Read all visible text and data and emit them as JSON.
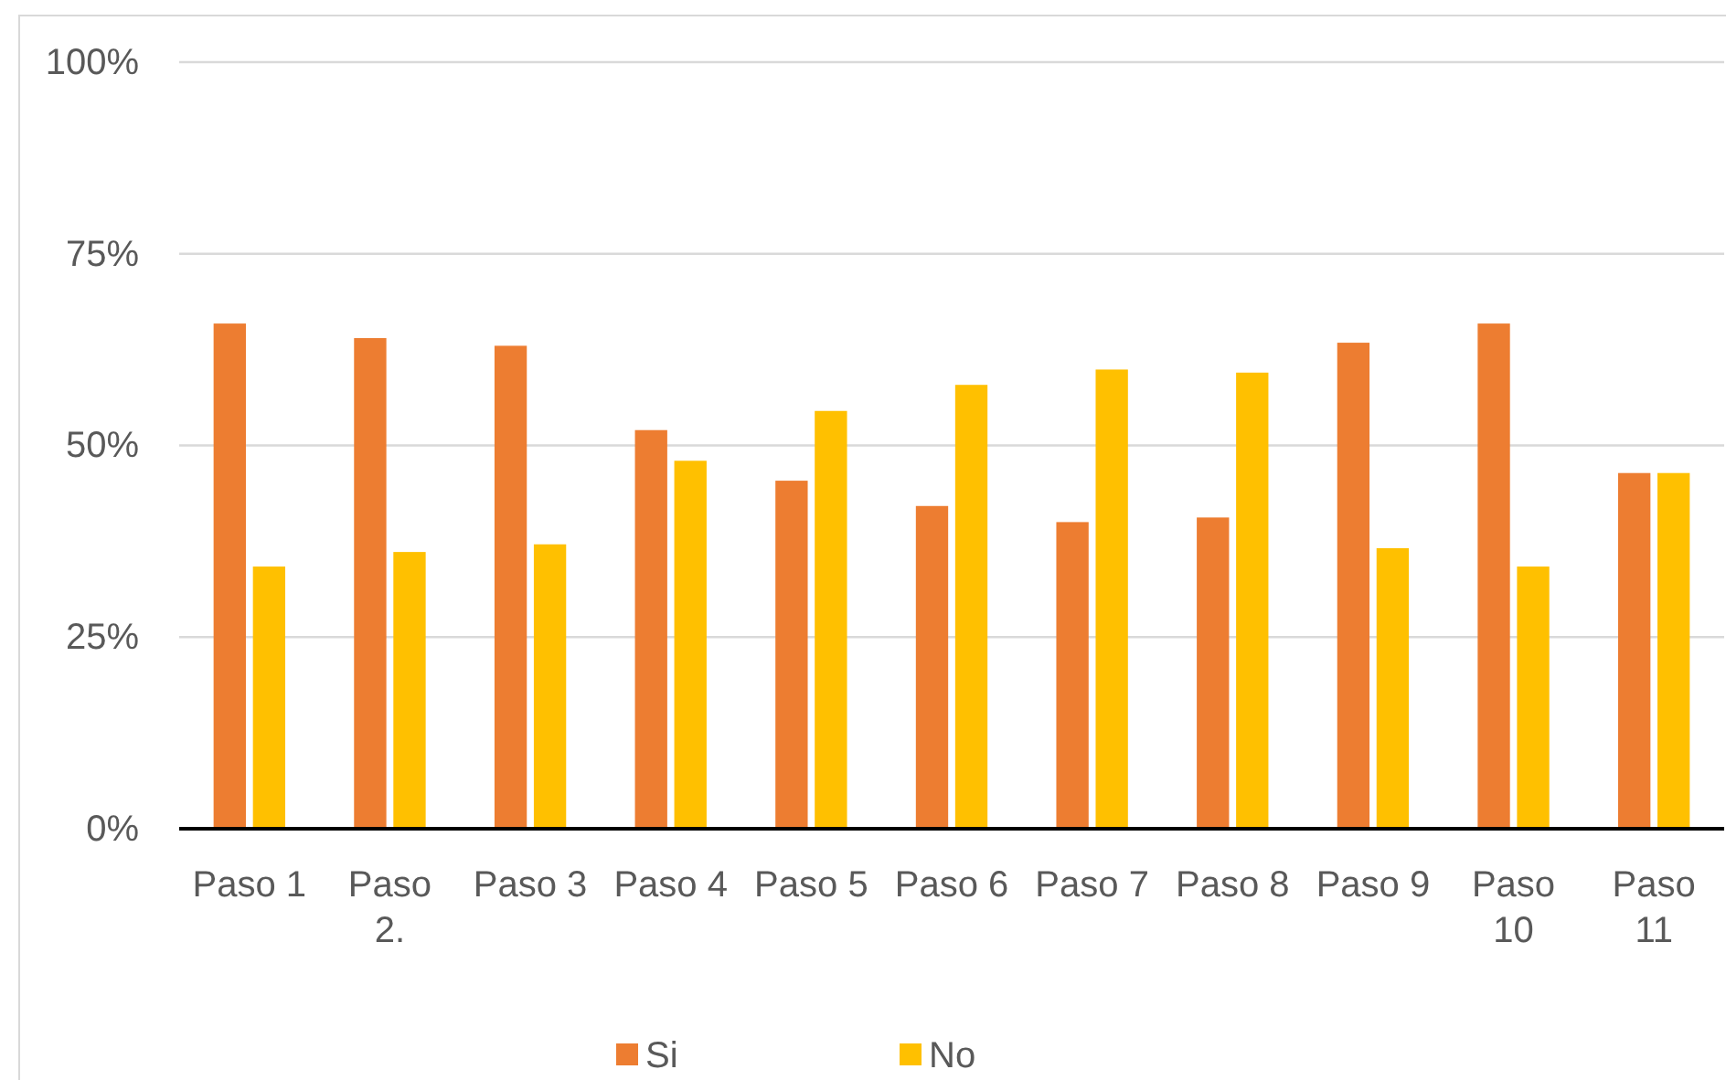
{
  "chart_data": {
    "type": "bar",
    "categories": [
      "Paso 1",
      "Paso 2.",
      "Paso 3",
      "Paso 4",
      "Paso 5",
      "Paso 6",
      "Paso 7",
      "Paso 8",
      "Paso 9",
      "Paso 10",
      "Paso 11"
    ],
    "series": [
      {
        "name": "Si",
        "color": "#ed7d31",
        "values": [
          65.9,
          64.0,
          63.0,
          52.0,
          45.4,
          42.1,
          40.0,
          40.6,
          63.4,
          65.9,
          46.4
        ]
      },
      {
        "name": "No",
        "color": "#ffc000",
        "values": [
          34.2,
          36.1,
          37.1,
          48.0,
          54.5,
          57.9,
          59.9,
          59.5,
          36.6,
          34.2,
          46.4
        ]
      }
    ],
    "ylim": [
      0,
      100
    ],
    "yticks": [
      {
        "value": 0,
        "label": "0%"
      },
      {
        "value": 25,
        "label": "25%"
      },
      {
        "value": 50,
        "label": "50%"
      },
      {
        "value": 75,
        "label": "75%"
      },
      {
        "value": 100,
        "label": "100%"
      }
    ],
    "grid": "y",
    "legend": "bottom"
  }
}
